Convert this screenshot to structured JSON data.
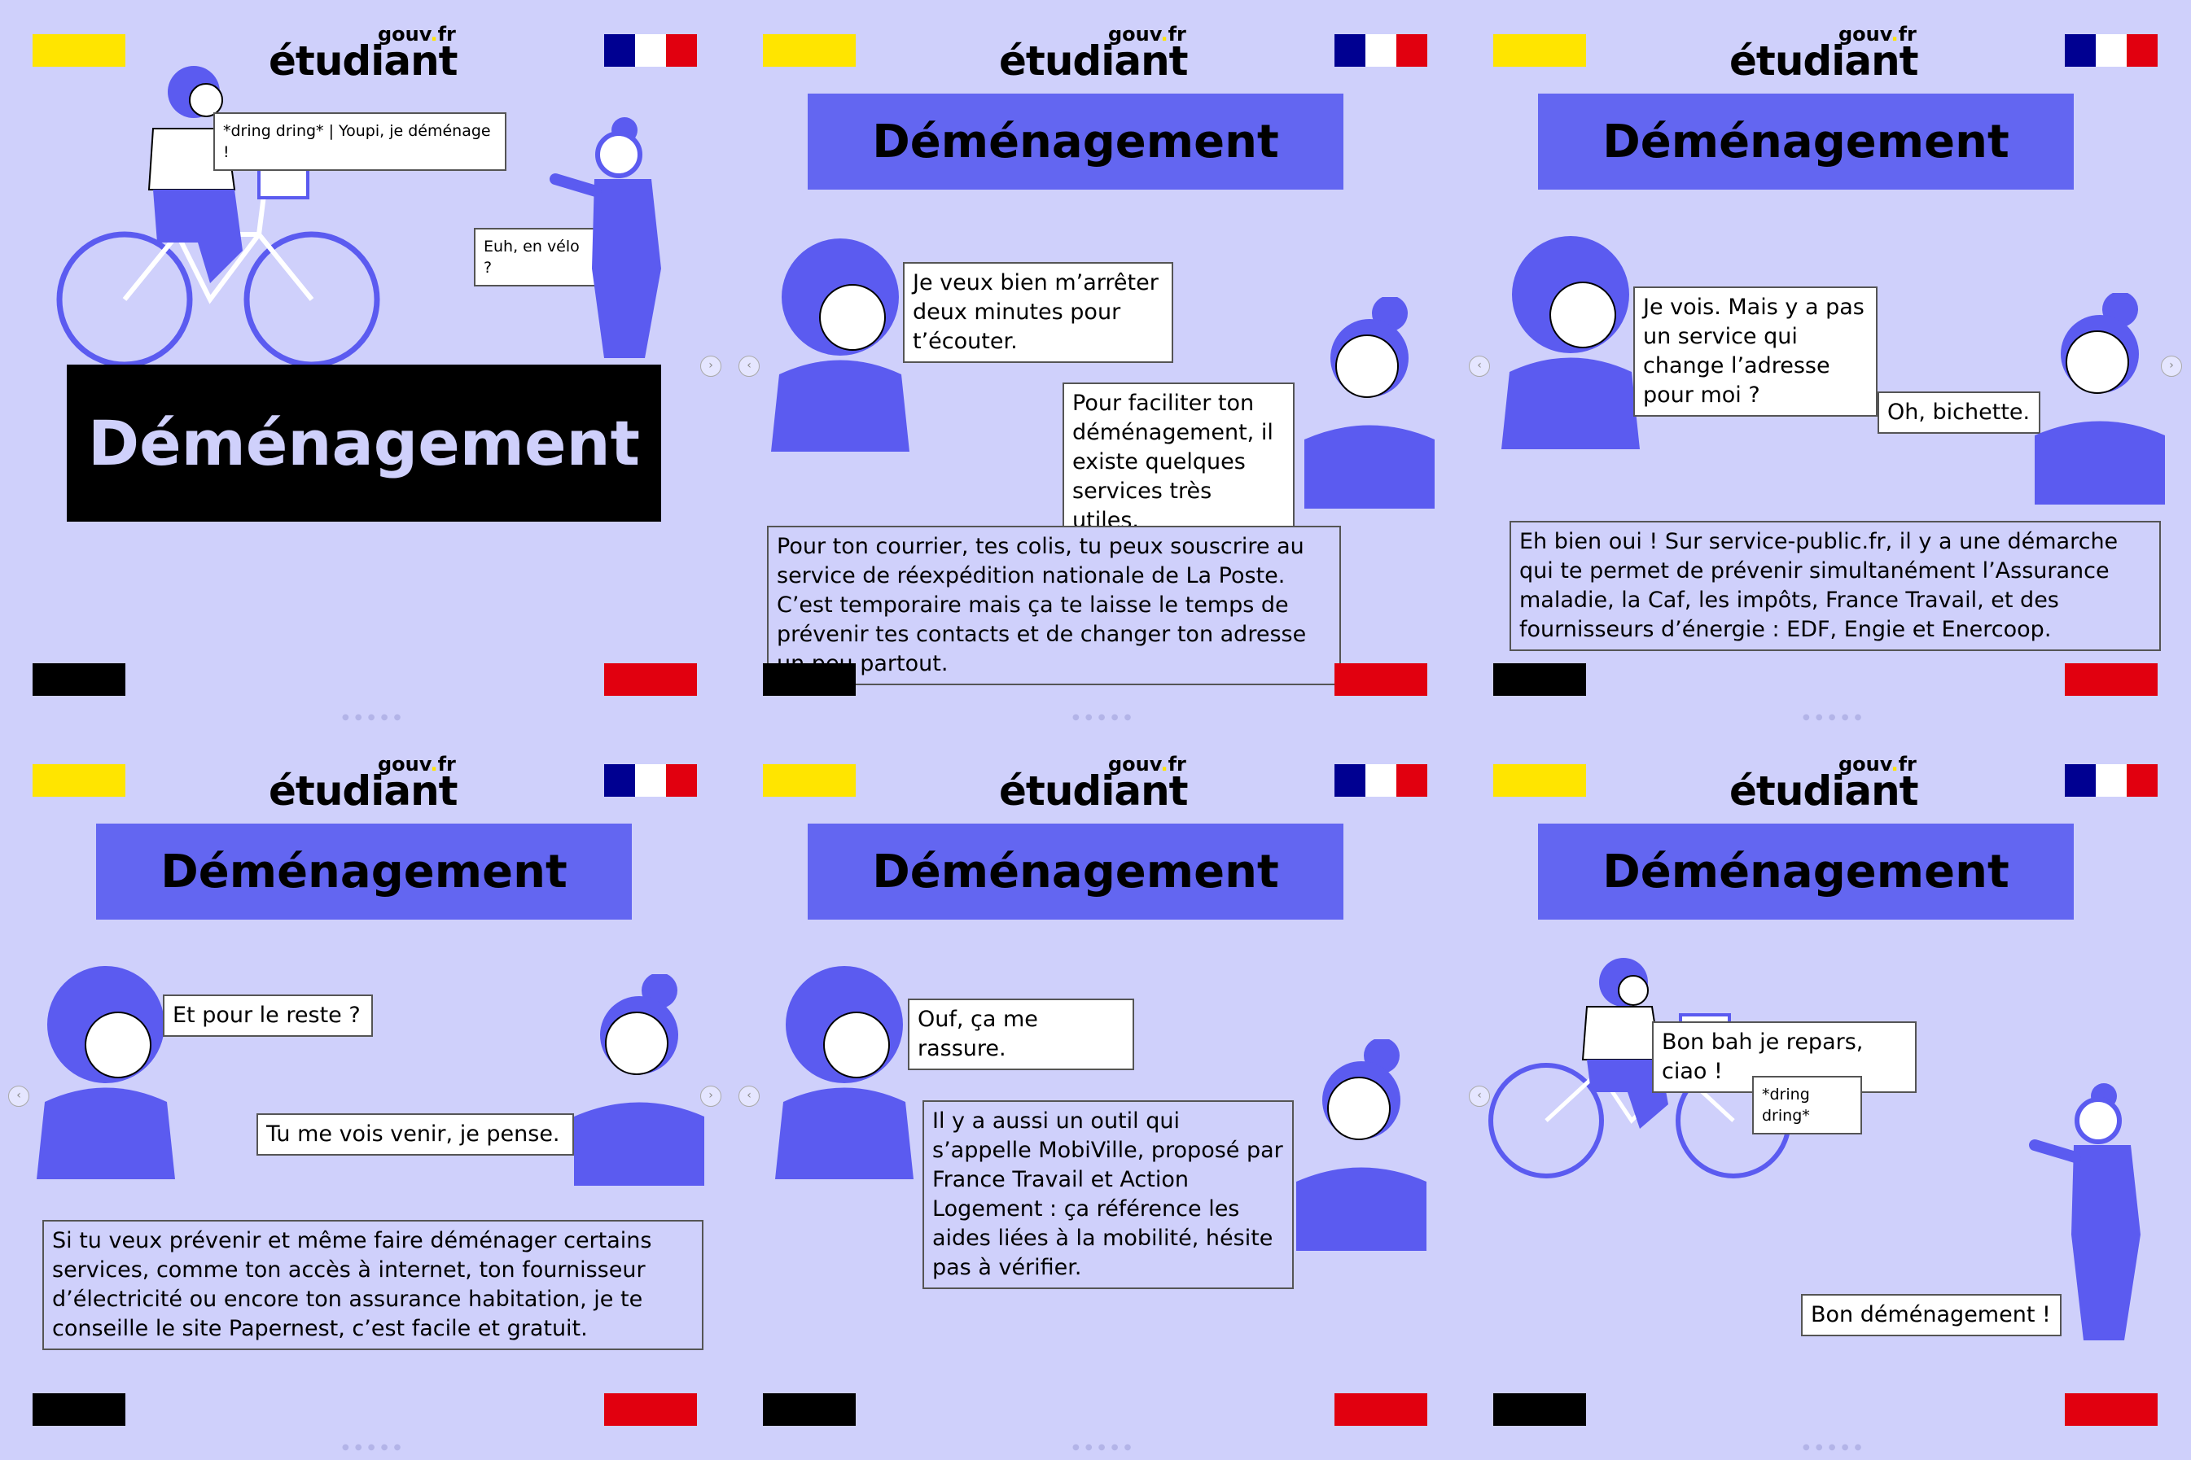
{
  "brand": {
    "logo_main": "étudiant",
    "logo_gouv": "gouv",
    "logo_dot": ".",
    "logo_fr": "fr"
  },
  "title": "Déménagement",
  "panels": [
    {
      "bubbles": [
        "*dring dring* | Youpi, je déménage !",
        "Euh, en vélo ?"
      ]
    },
    {
      "bubbles": [
        "Je veux bien m’arrêter deux minutes pour t’écouter.",
        "Pour faciliter ton déménagement, il existe quelques services très utiles.",
        "Pour ton courrier, tes colis, tu peux souscrire au service de réexpédition nationale de La Poste. C’est temporaire mais ça te laisse le temps de prévenir tes contacts et de changer ton adresse un peu partout."
      ]
    },
    {
      "bubbles": [
        "Je vois. Mais y a pas un service qui change l’adresse pour moi ?",
        "Oh, bichette.",
        "Eh bien oui ! Sur service-public.fr, il y a une démarche qui te permet de prévenir simultanément l’Assurance maladie, la Caf, les impôts, France Travail, et des fournisseurs d’énergie : EDF, Engie et Enercoop."
      ]
    },
    {
      "bubbles": [
        "Et pour le reste ?",
        "Tu me vois venir, je pense.",
        "Si tu veux prévenir et même faire déménager certains services, comme ton accès à internet, ton fournisseur d’électricité ou encore ton assurance habitation, je te conseille le site Papernest, c’est facile et gratuit."
      ]
    },
    {
      "bubbles": [
        "Ouf, ça me rassure.",
        "Il y a aussi un outil qui s’appelle MobiVille, proposé par France Travail et Action Logement : ça référence les aides liées à la mobilité, hésite pas à vérifier."
      ]
    },
    {
      "bubbles": [
        "Bon bah je repars, ciao !",
        "*dring dring*",
        "Bon déménagement !"
      ]
    }
  ],
  "colors": {
    "background": "#cfd0fb",
    "accent": "#6366f1",
    "character": "#5b5bf0",
    "yellow": "#ffe500",
    "red": "#e1000f",
    "blue": "#000091"
  },
  "icons": {
    "next": "chevron-right-icon",
    "prev": "chevron-left-icon"
  }
}
